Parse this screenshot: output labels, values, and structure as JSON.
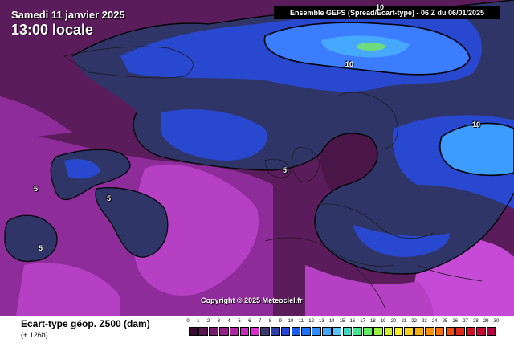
{
  "header": {
    "date": "Samedi 11 janvier 2025",
    "local_time": "13:00 locale",
    "model_banner": "Ensemble GEFS  (Spread/Ecart-type) - 06 Z du 06/01/2025"
  },
  "copyright": "Copyright © 2025 Meteociel.fr",
  "contour_labels": [
    "10",
    "10",
    "10",
    "5",
    "5",
    "5",
    "5"
  ],
  "footer": {
    "field_title": "Ecart-type géop. Z500 (dam)",
    "lead_time": "(+ 126h)"
  },
  "scale": {
    "ticks": [
      "0",
      "1",
      "2",
      "3",
      "4",
      "5",
      "6",
      "7",
      "8",
      "9",
      "10",
      "11",
      "12",
      "13",
      "14",
      "15",
      "16",
      "17",
      "18",
      "19",
      "20",
      "21",
      "22",
      "23",
      "24",
      "25",
      "26",
      "27",
      "28",
      "29",
      "30"
    ],
    "colors": [
      "#3d0a35",
      "#5a1450",
      "#7a1a6c",
      "#962088",
      "#b026a2",
      "#c72cbc",
      "#d82ed0",
      "#3c3870",
      "#2e3ea8",
      "#2348d8",
      "#1a5cf0",
      "#2070ff",
      "#2e8cff",
      "#40a8ff",
      "#5ac4ff",
      "#40d8c0",
      "#40e890",
      "#60f060",
      "#98f440",
      "#d0f030",
      "#f8f020",
      "#f8d020",
      "#f8b018",
      "#f89010",
      "#f87010",
      "#f04c10",
      "#e02818",
      "#d01020",
      "#c00830",
      "#b00040"
    ]
  },
  "colors": {
    "sea_dark": "#4c1b4e",
    "spread_magenta": "#a33cb0",
    "spread_bright": "#c43fd2",
    "spread_navy": "#2f3566",
    "spread_blue": "#2a3fc8",
    "spread_light_blue": "#3c9cff"
  }
}
